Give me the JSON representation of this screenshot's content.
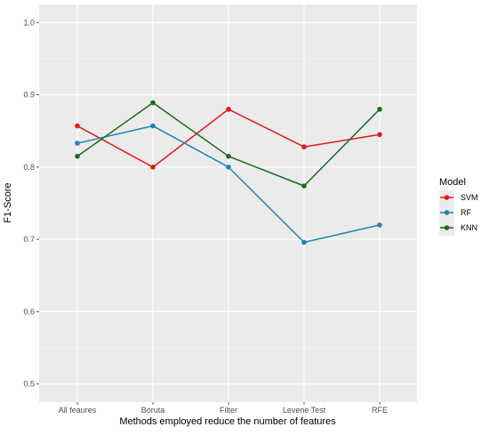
{
  "chart_data": {
    "type": "line",
    "title": "",
    "xlabel": "Methods employed reduce the number of features",
    "ylabel": "F1-Score",
    "categories": [
      "All feaures",
      "Boruta",
      "Filter",
      "Levene Test",
      "RFE"
    ],
    "ylim": [
      0.475,
      1.025
    ],
    "yticks": [
      0.5,
      0.6,
      0.7,
      0.8,
      0.9,
      1.0
    ],
    "ytick_labels": [
      "0.5",
      "0.6",
      "0.7",
      "0.8",
      "0.9",
      "1.0"
    ],
    "grid": true,
    "legend": {
      "title": "Model",
      "position": "right"
    },
    "series": [
      {
        "name": "SVM",
        "color": "#e41a1c",
        "values": [
          0.857,
          0.8,
          0.88,
          0.828,
          0.845
        ]
      },
      {
        "name": "RF",
        "color": "#1f83b4",
        "values": [
          0.833,
          0.857,
          0.8,
          0.696,
          0.72
        ]
      },
      {
        "name": "KNN",
        "color": "#1b6b1b",
        "values": [
          0.815,
          0.889,
          0.815,
          0.774,
          0.88
        ]
      }
    ]
  }
}
